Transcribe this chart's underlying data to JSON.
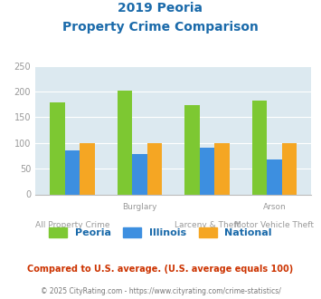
{
  "title_line1": "2019 Peoria",
  "title_line2": "Property Crime Comparison",
  "category_labels_line1": [
    "",
    "Burglary",
    "",
    "Arson"
  ],
  "category_labels_line2": [
    "All Property Crime",
    "",
    "Larceny & Theft",
    "Motor Vehicle Theft"
  ],
  "series": {
    "Peoria": [
      178,
      201,
      173,
      182
    ],
    "Illinois": [
      85,
      79,
      91,
      67
    ],
    "National": [
      100,
      100,
      100,
      100
    ]
  },
  "colors": {
    "Peoria": "#7dc832",
    "Illinois": "#3d8fe0",
    "National": "#f5a623"
  },
  "ylim": [
    0,
    250
  ],
  "yticks": [
    0,
    50,
    100,
    150,
    200,
    250
  ],
  "plot_bg": "#dce9f0",
  "title_color": "#1a6aaa",
  "footer_note": "Compared to U.S. average. (U.S. average equals 100)",
  "footer_note_color": "#cc3300",
  "copyright": "© 2025 CityRating.com - https://www.cityrating.com/crime-statistics/",
  "copyright_color": "#777777",
  "tick_label_color": "#999999",
  "grid_color": "#ffffff",
  "bar_width": 0.22
}
